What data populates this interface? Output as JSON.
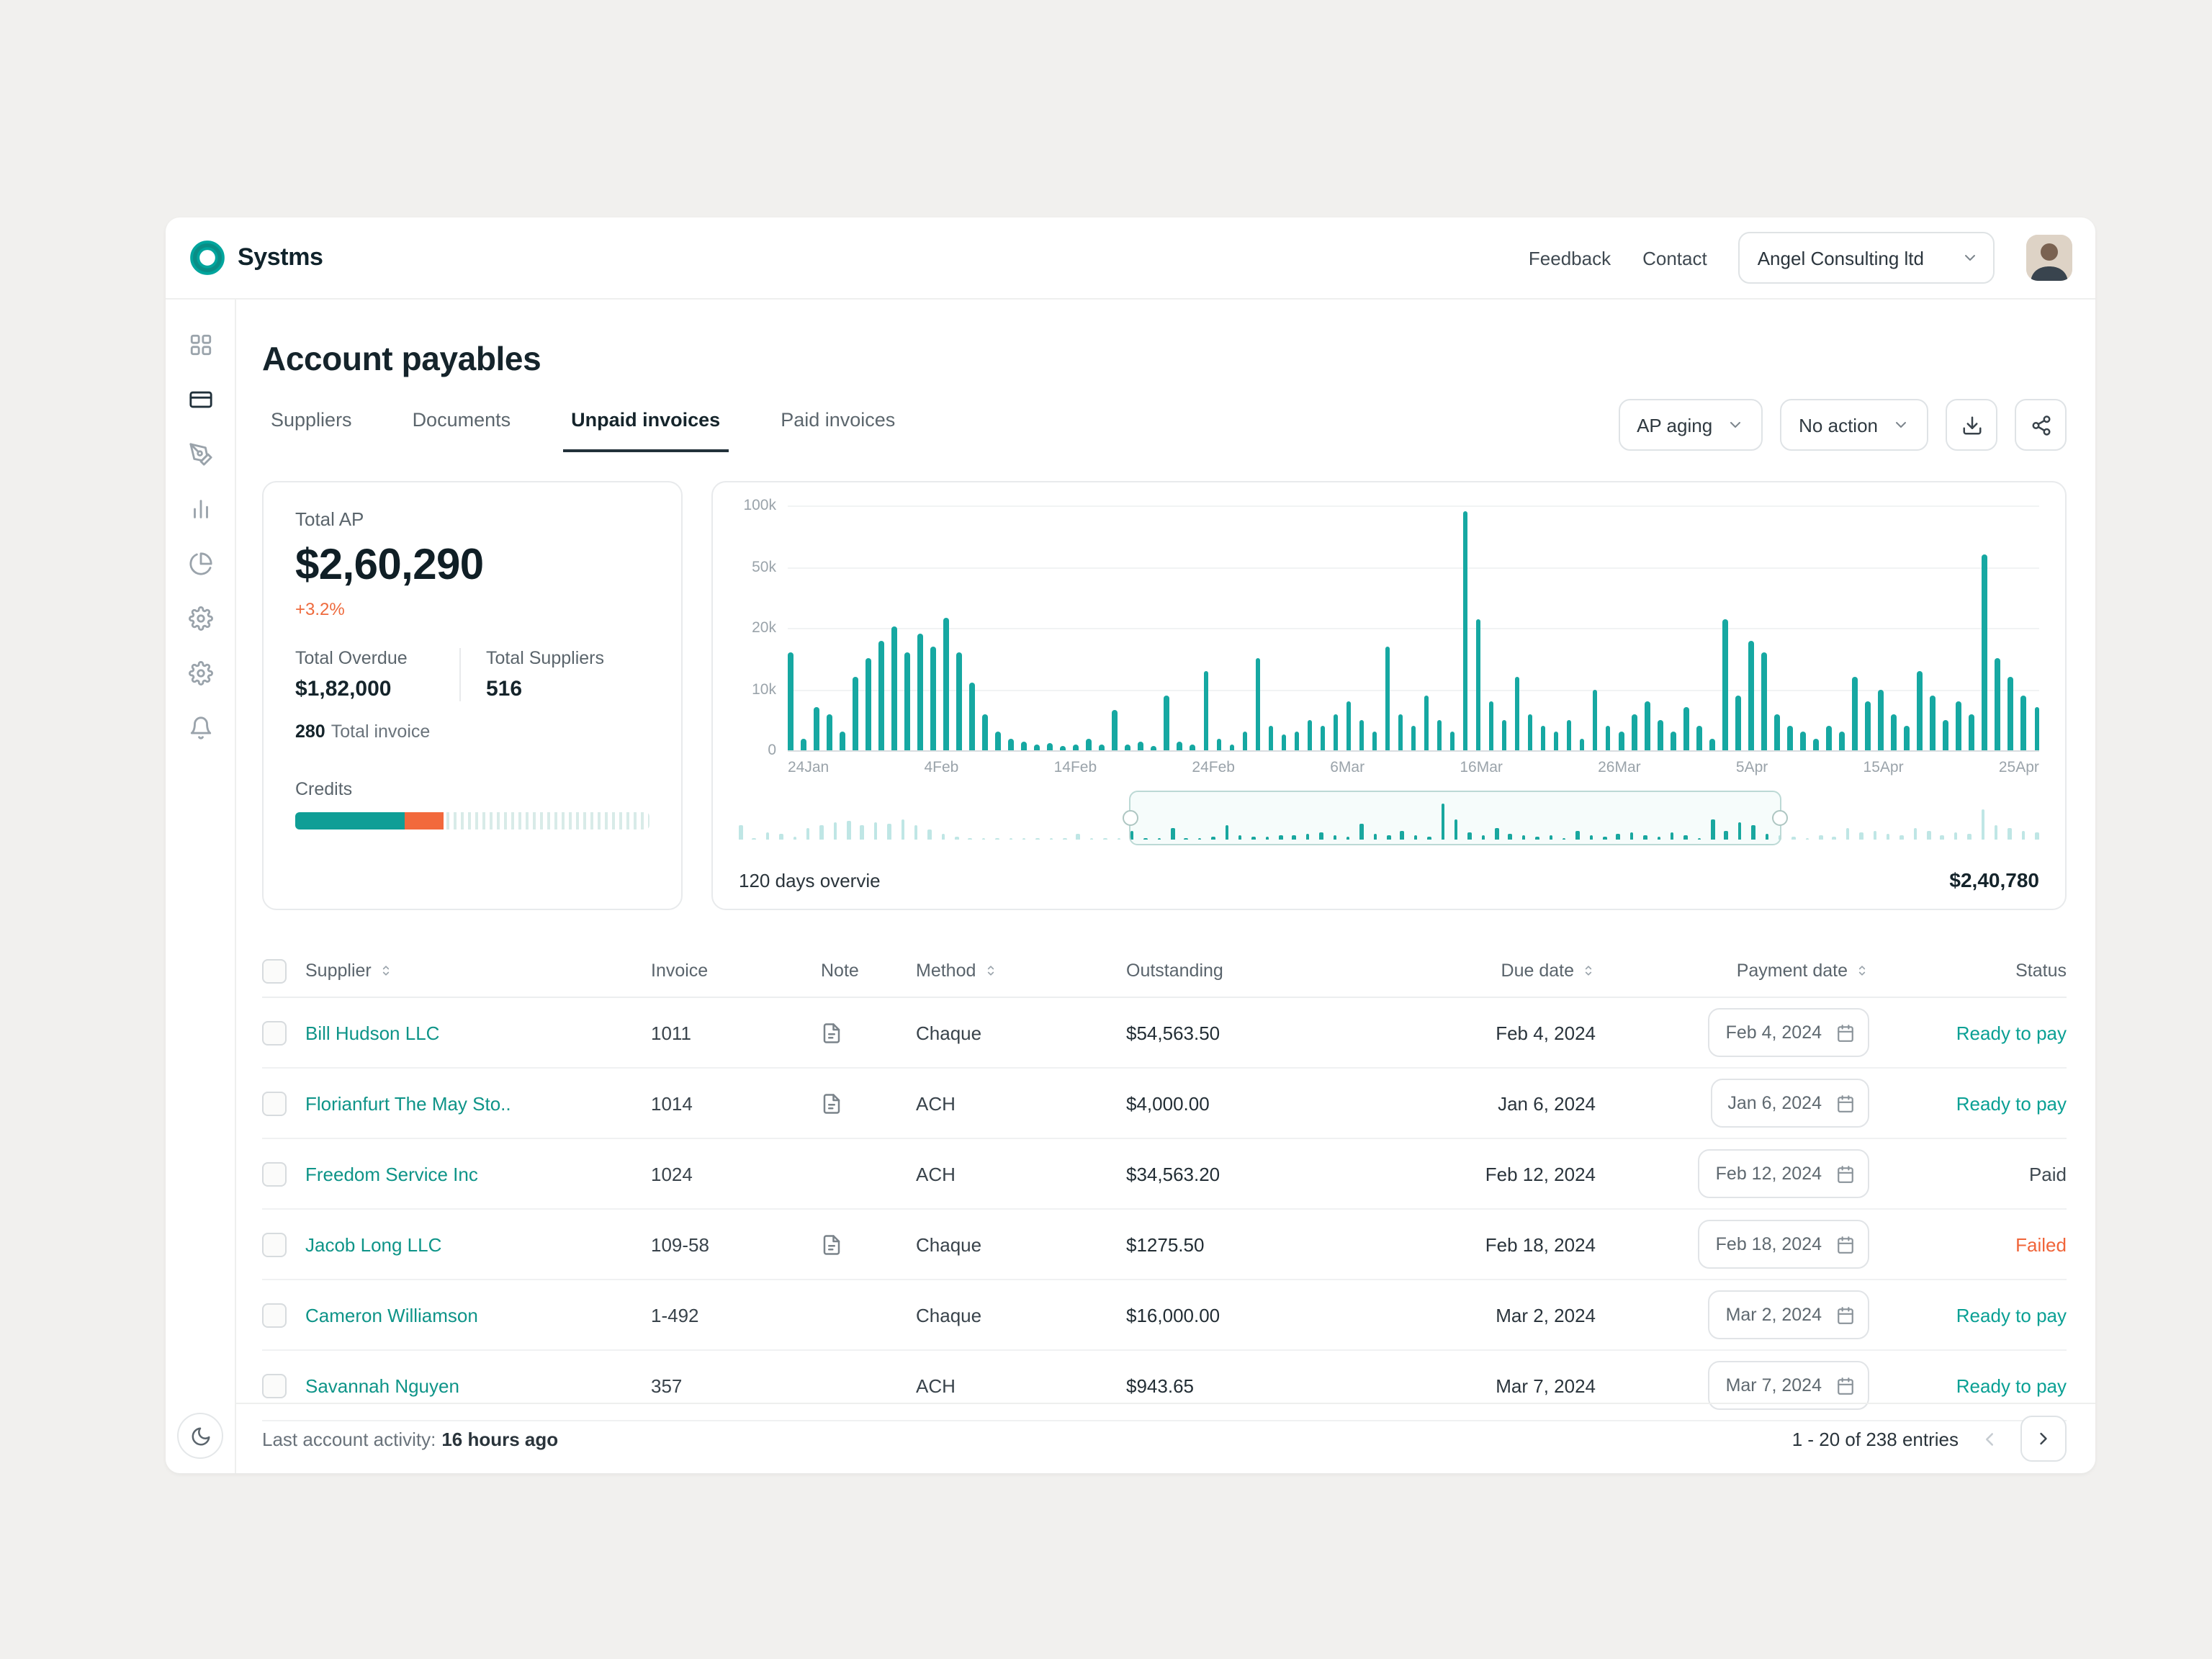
{
  "brand": {
    "name": "Systms"
  },
  "header": {
    "feedback": "Feedback",
    "contact": "Contact",
    "org": "Angel Consulting ltd"
  },
  "sidebar": {
    "items": [
      {
        "icon": "grid-icon",
        "active": false
      },
      {
        "icon": "credit-card-icon",
        "active": true
      },
      {
        "icon": "pen-tool-icon",
        "active": false
      },
      {
        "icon": "bar-chart-icon",
        "active": false
      },
      {
        "icon": "pie-chart-icon",
        "active": false
      },
      {
        "icon": "cog-icon",
        "active": false
      },
      {
        "icon": "settings-icon",
        "active": false
      },
      {
        "icon": "bell-icon",
        "active": false
      }
    ],
    "bottom_icon": "moon-icon"
  },
  "page": {
    "title": "Account payables"
  },
  "tabs": [
    {
      "label": "Suppliers",
      "active": false
    },
    {
      "label": "Documents",
      "active": false
    },
    {
      "label": "Unpaid invoices",
      "active": true
    },
    {
      "label": "Paid invoices",
      "active": false
    }
  ],
  "toolbar": {
    "ap_aging": "AP aging",
    "no_action": "No action"
  },
  "summary": {
    "total_ap_label": "Total AP",
    "total_ap_value": "$2,60,290",
    "change_pct": "+3.2%",
    "overdue_label": "Total Overdue",
    "overdue_value": "$1,82,000",
    "suppliers_label": "Total Suppliers",
    "suppliers_value": "516",
    "invoice_count": "280",
    "invoice_count_label": "Total invoice",
    "credits_label": "Credits",
    "credits_segments": [
      {
        "color": "#0f9e96",
        "pct": 31
      },
      {
        "color": "#f2693c",
        "pct": 11
      }
    ]
  },
  "chart_data": {
    "type": "bar",
    "title": "",
    "bar_color": "#16a8a2",
    "xlabel": "",
    "ylabel": "",
    "x_tick_labels": [
      "24Jan",
      "4Feb",
      "14Feb",
      "24Feb",
      "6Mar",
      "16Mar",
      "26Mar",
      "5Apr",
      "15Apr",
      "25Apr"
    ],
    "y_ticks": [
      {
        "label": "100k",
        "value": 100000
      },
      {
        "label": "50k",
        "value": 50000
      },
      {
        "label": "20k",
        "value": 20000
      },
      {
        "label": "10k",
        "value": 10000
      },
      {
        "label": "0",
        "value": 0
      }
    ],
    "y_scale_stops": [
      0,
      10000,
      20000,
      50000,
      100000
    ],
    "values": [
      16000,
      2000,
      7000,
      6000,
      3000,
      12000,
      15000,
      18000,
      21000,
      16000,
      19000,
      17000,
      25000,
      16000,
      11000,
      6000,
      3000,
      2000,
      1500,
      1000,
      1200,
      800,
      1000,
      2000,
      1000,
      6500,
      1000,
      1500,
      700,
      9000,
      1500,
      1000,
      13000,
      2000,
      1000,
      3000,
      15000,
      4000,
      2500,
      3000,
      5000,
      4000,
      6000,
      8000,
      5000,
      3000,
      17000,
      6000,
      4000,
      9000,
      5000,
      3000,
      95000,
      24000,
      8000,
      5000,
      12000,
      6000,
      4000,
      3000,
      5000,
      2000,
      10000,
      4000,
      3000,
      6000,
      8000,
      5000,
      3000,
      7000,
      4000,
      2000,
      24000,
      9000,
      18000,
      16000,
      6000,
      4000,
      3000,
      2000,
      4000,
      3000,
      12000,
      8000,
      10000,
      6000,
      4000,
      13000,
      9000,
      5000,
      8000,
      6000,
      60000,
      15000,
      12000,
      9000,
      7000
    ],
    "overview_selection": {
      "start_pct": 30,
      "end_pct": 80
    }
  },
  "chart_footer": {
    "left": "120 days overvie",
    "right": "$2,40,780"
  },
  "table": {
    "columns": [
      {
        "label": "Supplier",
        "sortable": true
      },
      {
        "label": "Invoice",
        "sortable": false
      },
      {
        "label": "Note",
        "sortable": false
      },
      {
        "label": "Method",
        "sortable": true
      },
      {
        "label": "Outstanding",
        "sortable": false
      },
      {
        "label": "Due date",
        "sortable": true
      },
      {
        "label": "Payment date",
        "sortable": true
      },
      {
        "label": "Status",
        "sortable": false
      }
    ],
    "rows": [
      {
        "supplier": "Bill Hudson LLC",
        "invoice": "1011",
        "note": true,
        "method": "Chaque",
        "outstanding": "$54,563.50",
        "due_date": "Feb 4, 2024",
        "payment_date": "Feb 4, 2024",
        "status": "Ready to pay"
      },
      {
        "supplier": "Florianfurt The May Sto..",
        "invoice": "1014",
        "note": true,
        "method": "ACH",
        "outstanding": "$4,000.00",
        "due_date": "Jan 6, 2024",
        "payment_date": "Jan 6, 2024",
        "status": "Ready to pay"
      },
      {
        "supplier": "Freedom Service Inc",
        "invoice": "1024",
        "note": false,
        "method": "ACH",
        "outstanding": "$34,563.20",
        "due_date": "Feb 12, 2024",
        "payment_date": "Feb 12, 2024",
        "status": "Paid"
      },
      {
        "supplier": "Jacob Long LLC",
        "invoice": "109-58",
        "note": true,
        "method": "Chaque",
        "outstanding": "$1275.50",
        "due_date": "Feb 18, 2024",
        "payment_date": "Feb 18, 2024",
        "status": "Failed"
      },
      {
        "supplier": "Cameron Williamson",
        "invoice": "1-492",
        "note": false,
        "method": "Chaque",
        "outstanding": "$16,000.00",
        "due_date": "Mar 2, 2024",
        "payment_date": "Mar 2, 2024",
        "status": "Ready to pay"
      },
      {
        "supplier": "Savannah Nguyen",
        "invoice": "357",
        "note": false,
        "method": "ACH",
        "outstanding": "$943.65",
        "due_date": "Mar 7, 2024",
        "payment_date": "Mar 7, 2024",
        "status": "Ready to pay"
      }
    ]
  },
  "footer": {
    "activity_label": "Last account activity:",
    "activity_value": "16 hours ago",
    "entries": "1 - 20 of 238 entries"
  }
}
